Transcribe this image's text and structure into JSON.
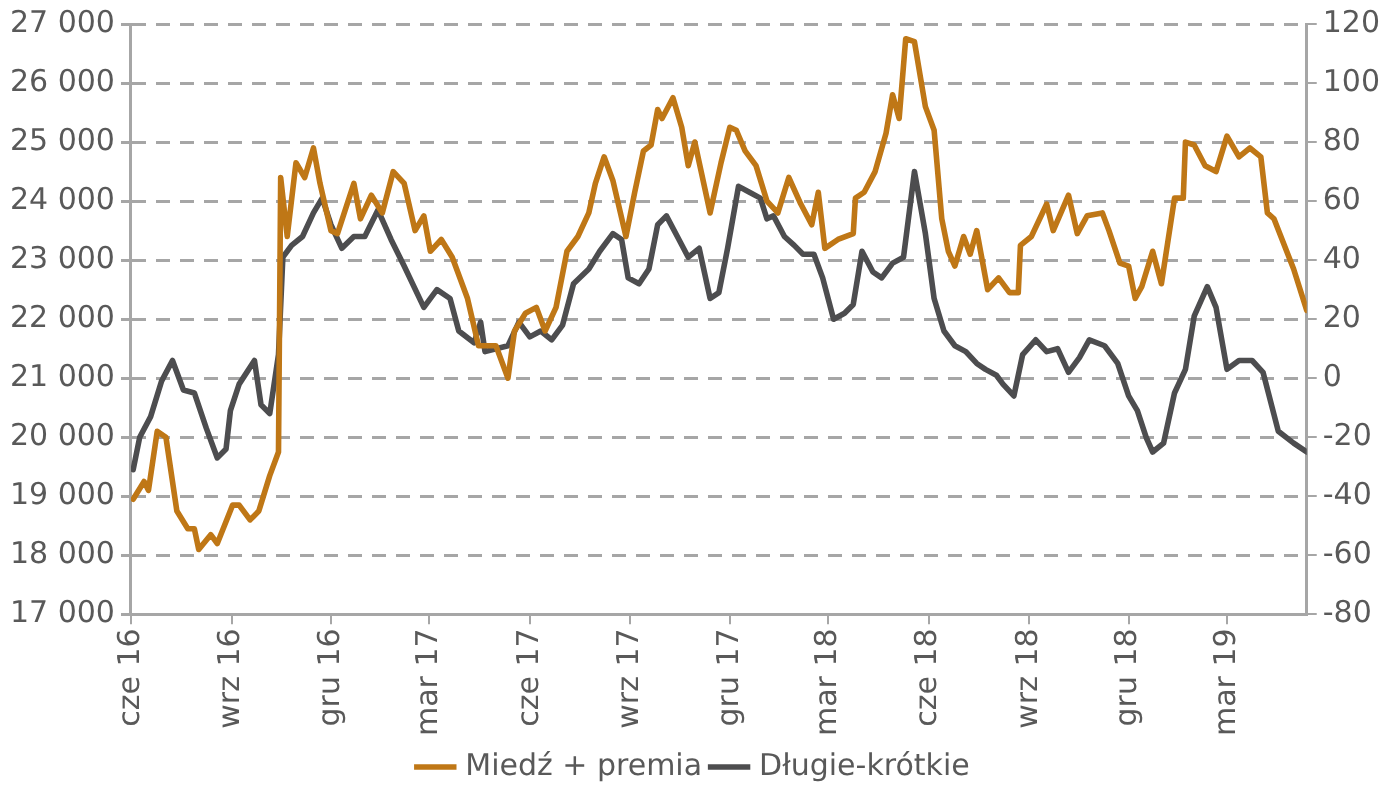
{
  "chart_data": {
    "type": "line",
    "xlim": [
      "2016-06-01",
      "2019-05-13"
    ],
    "xticks": [
      {
        "value": "2016-06-01",
        "label": "cze 16"
      },
      {
        "value": "2016-09-01",
        "label": "wrz 16"
      },
      {
        "value": "2016-12-01",
        "label": "gru 16"
      },
      {
        "value": "2017-03-01",
        "label": "mar 17"
      },
      {
        "value": "2017-06-01",
        "label": "cze 17"
      },
      {
        "value": "2017-09-01",
        "label": "wrz 17"
      },
      {
        "value": "2017-12-01",
        "label": "gru 17"
      },
      {
        "value": "2018-03-01",
        "label": "mar 18"
      },
      {
        "value": "2018-06-01",
        "label": "cze 18"
      },
      {
        "value": "2018-09-01",
        "label": "wrz 18"
      },
      {
        "value": "2018-12-01",
        "label": "gru 18"
      },
      {
        "value": "2019-03-01",
        "label": "mar 19"
      }
    ],
    "ylim": [
      17000,
      27000
    ],
    "yticks": [
      {
        "value": 17000,
        "label": "17 000"
      },
      {
        "value": 18000,
        "label": "18 000"
      },
      {
        "value": 19000,
        "label": "19 000"
      },
      {
        "value": 20000,
        "label": "20 000"
      },
      {
        "value": 21000,
        "label": "21 000"
      },
      {
        "value": 22000,
        "label": "22 000"
      },
      {
        "value": 23000,
        "label": "23 000"
      },
      {
        "value": 24000,
        "label": "24 000"
      },
      {
        "value": 25000,
        "label": "25 000"
      },
      {
        "value": 26000,
        "label": "26 000"
      },
      {
        "value": 27000,
        "label": "27 000"
      }
    ],
    "y2lim": [
      -80,
      120
    ],
    "y2ticks": [
      -80,
      -60,
      -40,
      -20,
      0,
      20,
      40,
      60,
      80,
      100,
      120
    ],
    "grid": "y",
    "legend": "bottom",
    "marker": "none",
    "line_style": "solid",
    "series": [
      {
        "name": "Miedź + premia",
        "color": "#bf7716",
        "x": [
          "2016-06-03",
          "2016-06-13",
          "2016-06-17",
          "2016-06-25",
          "2016-07-03",
          "2016-07-13",
          "2016-07-23",
          "2016-07-29",
          "2016-08-02",
          "2016-08-13",
          "2016-08-19",
          "2016-09-02",
          "2016-09-08",
          "2016-09-18",
          "2016-09-26",
          "2016-10-06",
          "2016-10-14",
          "2016-10-16",
          "2016-10-22",
          "2016-10-30",
          "2016-11-07",
          "2016-11-15",
          "2016-11-21",
          "2016-12-01",
          "2016-12-07",
          "2016-12-22",
          "2016-12-28",
          "2017-01-07",
          "2017-01-17",
          "2017-01-27",
          "2017-02-06",
          "2017-02-16",
          "2017-02-24",
          "2017-03-02",
          "2017-03-12",
          "2017-03-22",
          "2017-04-05",
          "2017-04-15",
          "2017-05-01",
          "2017-05-12",
          "2017-05-18",
          "2017-05-28",
          "2017-06-07",
          "2017-06-15",
          "2017-06-25",
          "2017-07-05",
          "2017-07-15",
          "2017-07-25",
          "2017-07-31",
          "2017-08-08",
          "2017-08-16",
          "2017-08-28",
          "2017-09-05",
          "2017-09-13",
          "2017-09-20",
          "2017-09-26",
          "2017-09-30",
          "2017-10-10",
          "2017-10-18",
          "2017-10-24",
          "2017-10-30",
          "2017-11-13",
          "2017-11-23",
          "2017-12-01",
          "2017-12-07",
          "2017-12-15",
          "2017-12-25",
          "2018-01-04",
          "2018-01-14",
          "2018-01-24",
          "2018-02-04",
          "2018-02-14",
          "2018-02-20",
          "2018-02-26",
          "2018-03-10",
          "2018-03-24",
          "2018-03-26",
          "2018-04-03",
          "2018-04-13",
          "2018-04-23",
          "2018-04-29",
          "2018-05-05",
          "2018-05-11",
          "2018-05-19",
          "2018-05-29",
          "2018-06-06",
          "2018-06-13",
          "2018-06-19",
          "2018-06-25",
          "2018-07-03",
          "2018-07-09",
          "2018-07-15",
          "2018-07-25",
          "2018-08-04",
          "2018-08-14",
          "2018-08-22",
          "2018-08-24",
          "2018-09-03",
          "2018-09-17",
          "2018-09-23",
          "2018-10-07",
          "2018-10-15",
          "2018-10-24",
          "2018-11-07",
          "2018-11-13",
          "2018-11-23",
          "2018-12-01",
          "2018-12-07",
          "2018-12-13",
          "2018-12-23",
          "2018-12-31",
          "2019-01-12",
          "2019-01-20",
          "2019-01-22",
          "2019-01-30",
          "2019-02-09",
          "2019-02-19",
          "2019-03-01",
          "2019-03-12",
          "2019-03-22",
          "2019-04-01",
          "2019-04-07",
          "2019-04-13",
          "2019-05-01",
          "2019-05-13"
        ],
        "values": [
          18950,
          19250,
          19100,
          20100,
          20000,
          18750,
          18450,
          18450,
          18100,
          18350,
          18200,
          18850,
          18850,
          18600,
          18750,
          19350,
          19750,
          24400,
          23400,
          24650,
          24400,
          24900,
          24300,
          23500,
          23450,
          24300,
          23700,
          24100,
          23800,
          24500,
          24300,
          23500,
          23750,
          23150,
          23350,
          23050,
          22350,
          21550,
          21550,
          21000,
          21800,
          22100,
          22200,
          21800,
          22200,
          23150,
          23400,
          23800,
          24300,
          24750,
          24350,
          23400,
          24150,
          24850,
          24950,
          25550,
          25400,
          25750,
          25250,
          24600,
          25000,
          23800,
          24650,
          25250,
          25200,
          24850,
          24600,
          24000,
          23800,
          24400,
          23950,
          23600,
          24150,
          23200,
          23350,
          23450,
          24050,
          24150,
          24500,
          25150,
          25800,
          25400,
          26750,
          26700,
          25600,
          25200,
          23700,
          23150,
          22900,
          23400,
          23100,
          23500,
          22500,
          22700,
          22450,
          22450,
          23250,
          23400,
          23950,
          23500,
          24100,
          23450,
          23750,
          23800,
          23500,
          22950,
          22900,
          22350,
          22550,
          23150,
          22600,
          24050,
          24050,
          25000,
          24950,
          24600,
          24500,
          25100,
          24750,
          24900,
          24750,
          23800,
          23700,
          22850,
          22150
        ]
      },
      {
        "name": "Długie-krótkie",
        "color": "#4d4d4f",
        "axis": "y2",
        "x": [
          "2016-06-03",
          "2016-06-09",
          "2016-06-19",
          "2016-06-29",
          "2016-07-09",
          "2016-07-19",
          "2016-07-29",
          "2016-08-09",
          "2016-08-19",
          "2016-08-27",
          "2016-08-31",
          "2016-09-08",
          "2016-09-22",
          "2016-09-28",
          "2016-10-06",
          "2016-10-14",
          "2016-10-18",
          "2016-10-26",
          "2016-11-05",
          "2016-11-15",
          "2016-11-23",
          "2016-12-01",
          "2016-12-11",
          "2016-12-22",
          "2017-01-01",
          "2017-01-13",
          "2017-01-25",
          "2017-02-06",
          "2017-02-24",
          "2017-03-08",
          "2017-03-20",
          "2017-03-28",
          "2017-04-11",
          "2017-04-17",
          "2017-04-21",
          "2017-05-12",
          "2017-05-22",
          "2017-06-01",
          "2017-06-11",
          "2017-06-21",
          "2017-07-01",
          "2017-07-11",
          "2017-07-25",
          "2017-08-04",
          "2017-08-16",
          "2017-08-24",
          "2017-08-30",
          "2017-09-09",
          "2017-09-18",
          "2017-09-26",
          "2017-10-04",
          "2017-10-14",
          "2017-10-24",
          "2017-11-03",
          "2017-11-13",
          "2017-11-21",
          "2017-11-29",
          "2017-12-09",
          "2017-12-19",
          "2017-12-29",
          "2018-01-04",
          "2018-01-10",
          "2018-01-20",
          "2018-01-29",
          "2018-02-06",
          "2018-02-16",
          "2018-02-24",
          "2018-03-06",
          "2018-03-16",
          "2018-03-24",
          "2018-04-01",
          "2018-04-11",
          "2018-04-19",
          "2018-04-29",
          "2018-05-09",
          "2018-05-19",
          "2018-05-29",
          "2018-06-06",
          "2018-06-15",
          "2018-06-25",
          "2018-07-05",
          "2018-07-15",
          "2018-07-23",
          "2018-08-02",
          "2018-08-08",
          "2018-08-18",
          "2018-08-26",
          "2018-09-07",
          "2018-09-17",
          "2018-09-27",
          "2018-10-07",
          "2018-10-17",
          "2018-10-26",
          "2018-11-09",
          "2018-11-21",
          "2018-12-01",
          "2018-12-09",
          "2018-12-17",
          "2018-12-23",
          "2019-01-02",
          "2019-01-12",
          "2019-01-22",
          "2019-01-30",
          "2019-02-11",
          "2019-02-19",
          "2019-03-01",
          "2019-03-12",
          "2019-03-24",
          "2019-04-03",
          "2019-04-17",
          "2019-05-01",
          "2019-05-13"
        ],
        "values": [
          -31,
          -20,
          -13,
          -1,
          6,
          -4,
          -5,
          -17,
          -27,
          -24,
          -11,
          -2,
          6,
          -9,
          -12,
          8,
          41,
          45,
          48,
          56,
          61,
          52,
          44,
          48,
          48,
          57,
          47,
          38,
          24,
          30,
          27,
          16,
          12,
          19,
          9,
          11,
          19,
          14,
          16,
          13,
          18,
          32,
          37,
          43,
          49,
          47,
          34,
          32,
          37,
          52,
          55,
          48,
          41,
          44,
          27,
          29,
          44,
          65,
          63,
          61,
          54,
          55,
          48,
          45,
          42,
          42,
          34,
          20,
          22,
          25,
          43,
          36,
          34,
          39,
          41,
          70,
          49,
          27,
          16,
          11,
          9,
          5,
          3,
          1,
          -2,
          -6,
          8,
          13,
          9,
          10,
          2,
          7,
          13,
          11,
          5,
          -6,
          -11,
          -20,
          -25,
          -22,
          -5,
          3,
          21,
          31,
          24,
          3,
          6,
          6,
          2,
          -18,
          -22,
          -25
        ]
      }
    ]
  }
}
